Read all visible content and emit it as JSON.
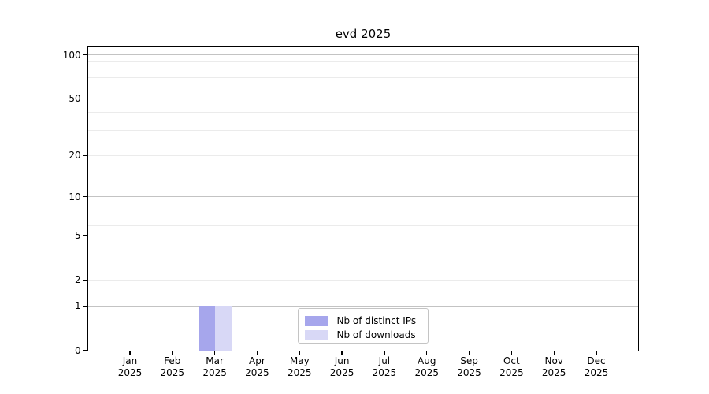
{
  "chart": {
    "title": "evd 2025"
  },
  "chart_data": {
    "type": "bar",
    "title": "evd 2025",
    "categories": [
      "Jan",
      "Feb",
      "Mar",
      "Apr",
      "May",
      "Jun",
      "Jul",
      "Aug",
      "Sep",
      "Oct",
      "Nov",
      "Dec"
    ],
    "category_year": "2025",
    "series": [
      {
        "name": "Nb of distinct IPs",
        "color": "#a6a6ec",
        "values": [
          0,
          0,
          1,
          0,
          0,
          0,
          0,
          0,
          0,
          0,
          0,
          0
        ]
      },
      {
        "name": "Nb of downloads",
        "color": "#d8d8f6",
        "values": [
          0,
          0,
          1,
          0,
          0,
          0,
          0,
          0,
          0,
          0,
          0,
          0
        ]
      }
    ],
    "y_scale": "log1p",
    "ylim": [
      0,
      113
    ],
    "y_axis_ticks": [
      100,
      50,
      20,
      10,
      5,
      2,
      1,
      0
    ],
    "y_major_gridlines": [
      1,
      10,
      100
    ],
    "y_minor_gridlines": [
      2,
      3,
      4,
      5,
      6,
      7,
      8,
      9,
      20,
      30,
      40,
      50,
      60,
      70,
      80,
      90
    ],
    "grid": "horizontal-only",
    "legend_position": "lower-center-inside"
  },
  "legend": {
    "items": [
      {
        "label": "Nb of distinct IPs",
        "color": "#a6a6ec"
      },
      {
        "label": "Nb of downloads",
        "color": "#d8d8f6"
      }
    ]
  },
  "colors": {
    "bar_distinct_ips": "#a6a6ec",
    "bar_downloads": "#d8d8f6",
    "grid_major": "#c3c3c3",
    "grid_minor": "#ebebeb",
    "axis": "#000000",
    "background": "#ffffff"
  }
}
